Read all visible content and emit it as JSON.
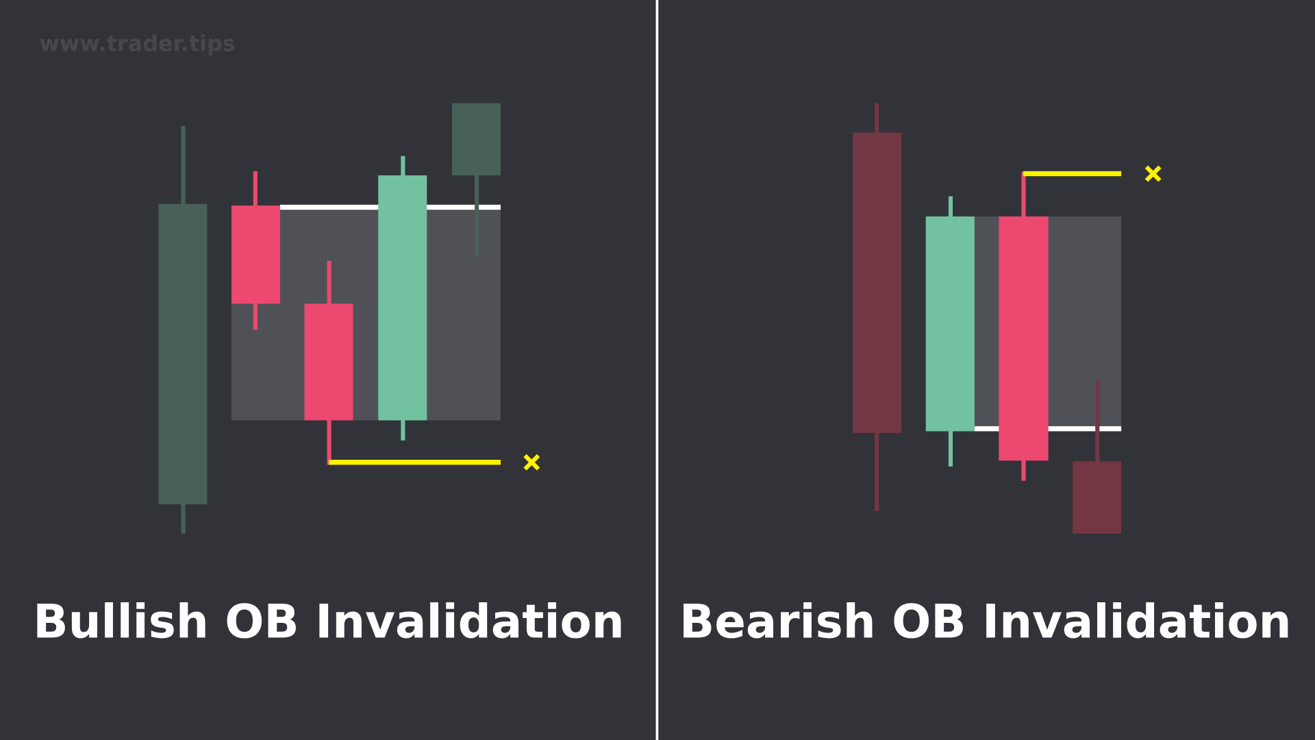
{
  "watermark": "www.trader.tips",
  "panels": [
    {
      "title": "Bullish OB Invalidation"
    },
    {
      "title": "Bearish OB Invalidation"
    }
  ]
}
